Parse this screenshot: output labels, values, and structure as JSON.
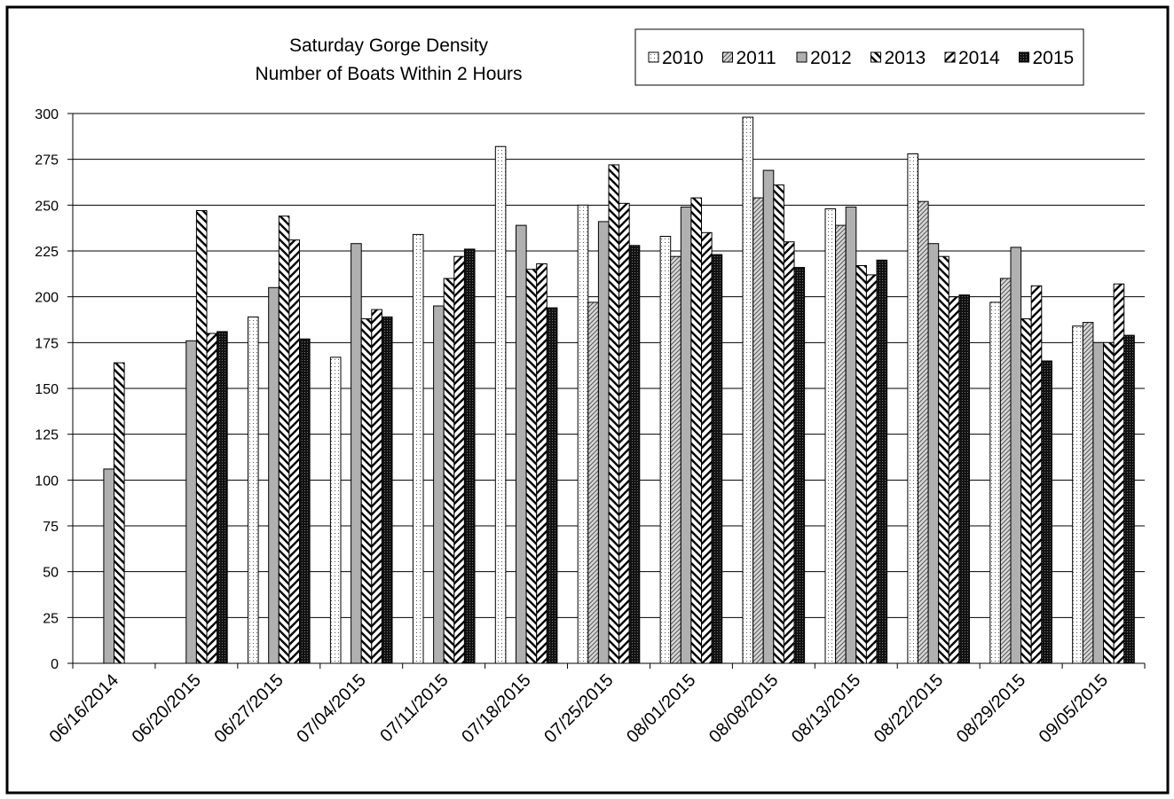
{
  "chart_data": {
    "type": "bar",
    "title": "Saturday Gorge Density",
    "subtitle": "Number of Boats Within 2 Hours",
    "xlabel": "",
    "ylabel": "",
    "ylim": [
      0,
      300
    ],
    "y_ticks": [
      0,
      25,
      50,
      75,
      100,
      125,
      150,
      175,
      200,
      225,
      250,
      275,
      300
    ],
    "grid": true,
    "legend_position": "top-right",
    "categories": [
      "06/16/2014",
      "06/20/2015",
      "06/27/2015",
      "07/04/2015",
      "07/11/2015",
      "07/18/2015",
      "07/25/2015",
      "08/01/2015",
      "08/08/2015",
      "08/13/2015",
      "08/22/2015",
      "08/29/2015",
      "09/05/2015"
    ],
    "series": [
      {
        "name": "2010",
        "pattern": "dots",
        "values": [
          null,
          null,
          189,
          167,
          234,
          282,
          250,
          233,
          298,
          248,
          278,
          197,
          184
        ]
      },
      {
        "name": "2011",
        "pattern": "diagonal-fine",
        "values": [
          null,
          null,
          null,
          null,
          null,
          null,
          197,
          222,
          254,
          239,
          252,
          210,
          186
        ]
      },
      {
        "name": "2012",
        "pattern": "solid-gray",
        "values": [
          106,
          176,
          205,
          229,
          195,
          239,
          241,
          249,
          269,
          249,
          229,
          227,
          175
        ]
      },
      {
        "name": "2013",
        "pattern": "diagonal-wide",
        "values": [
          164,
          247,
          244,
          188,
          210,
          215,
          272,
          254,
          261,
          217,
          222,
          188,
          175
        ]
      },
      {
        "name": "2014",
        "pattern": "diagonal-reverse",
        "values": [
          null,
          180,
          231,
          193,
          222,
          218,
          251,
          235,
          230,
          212,
          200,
          206,
          207
        ]
      },
      {
        "name": "2015",
        "pattern": "dark-dots",
        "values": [
          null,
          181,
          177,
          189,
          226,
          194,
          228,
          223,
          216,
          220,
          201,
          165,
          179
        ]
      }
    ],
    "colors": {
      "background": "#ffffff",
      "gray_fill": "#b0b0b0",
      "dark_fill": "#1a1a1a",
      "line": "#000000"
    }
  }
}
